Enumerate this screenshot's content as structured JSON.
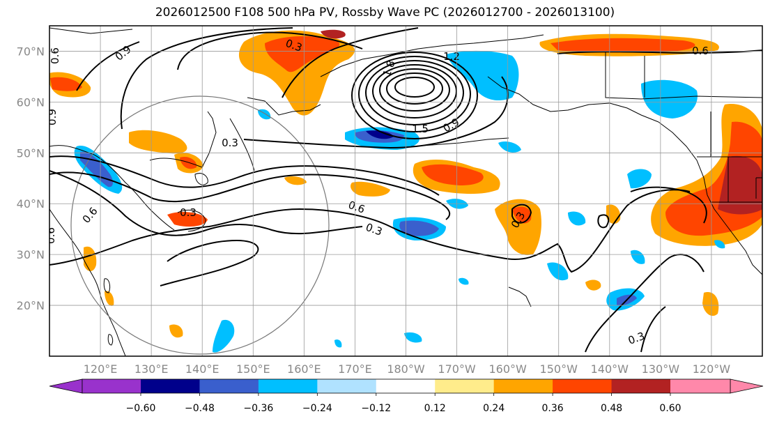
{
  "title": "2026012500 F108 500 hPa PV, Rossby Wave PC (2026012700 - 2026013100)",
  "map": {
    "lat_labels": [
      "70°N",
      "60°N",
      "50°N",
      "40°N",
      "30°N",
      "20°N"
    ],
    "lat_values": [
      70,
      60,
      50,
      40,
      30,
      20
    ],
    "lon_labels": [
      "120°E",
      "130°E",
      "140°E",
      "150°E",
      "160°E",
      "170°E",
      "180°W",
      "170°W",
      "160°W",
      "150°W",
      "140°W",
      "130°W",
      "120°W"
    ],
    "lon_values": [
      120,
      130,
      140,
      150,
      160,
      170,
      180,
      190,
      200,
      210,
      220,
      230,
      240
    ],
    "lat_range": [
      10,
      75
    ],
    "lon_range": [
      110,
      250
    ],
    "contour_labels": [
      "0.9",
      "0.3",
      "0.3",
      "1.2",
      "0.9",
      "0.6",
      "0.3",
      "0.6",
      "0.3",
      "0.9",
      "0.6",
      "0.3",
      "0.6",
      "0.3",
      "1.8",
      "1.5",
      "0.6"
    ],
    "colors": {
      "grid": "#999999",
      "label": "#888888",
      "circle": "#777777"
    }
  },
  "colorbar": {
    "tick_labels": [
      "−0.60",
      "−0.48",
      "−0.36",
      "−0.24",
      "−0.12",
      "0.12",
      "0.24",
      "0.36",
      "0.48",
      "0.60"
    ],
    "colors": [
      "#9932cc",
      "#00008b",
      "#3a5fcd",
      "#00bfff",
      "#b0e2ff",
      "#ffffff",
      "#ffec8b",
      "#ffa500",
      "#ff4500",
      "#b22222",
      "#ff88aa"
    ]
  }
}
